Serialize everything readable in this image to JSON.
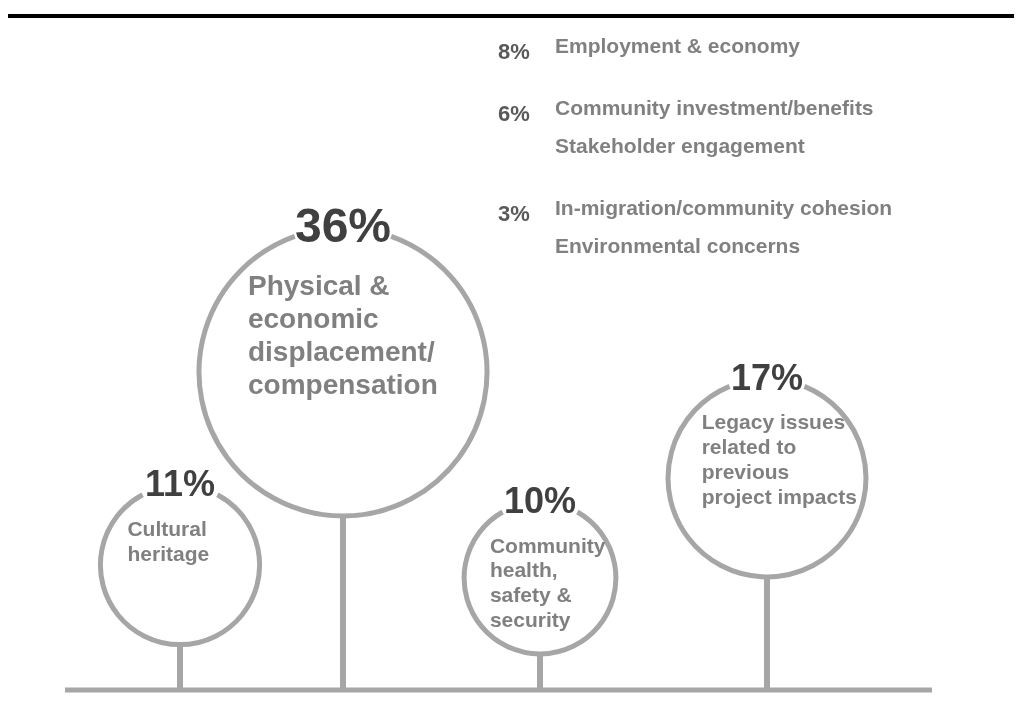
{
  "chart_data": {
    "type": "other",
    "categories": [
      "Cultural heritage",
      "Physical & economic displacement/ compensation",
      "Community health, safety & security",
      "Legacy issues related to previous project impacts",
      "Employment & economy",
      "Community investment/benefits",
      "Stakeholder engagement",
      "In-migration/community cohesion",
      "Environmental concerns"
    ],
    "values": [
      11,
      36,
      10,
      17,
      8,
      6,
      null,
      3,
      null
    ],
    "value_labels": [
      "11%",
      "36%",
      "10%",
      "17%",
      "8%",
      "6%",
      null,
      "3%",
      null
    ],
    "color": "#a6a6a6"
  }
}
